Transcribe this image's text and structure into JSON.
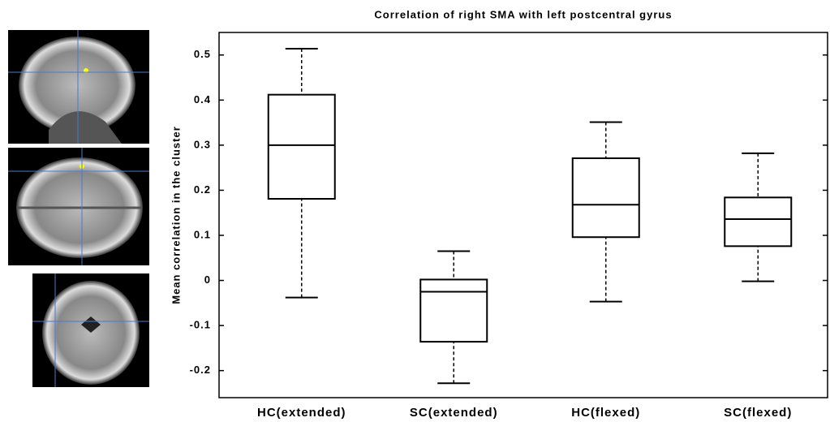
{
  "chart_data": {
    "type": "box",
    "title": "Correlation of right SMA with left postcentral gyrus",
    "y_label": "Mean correlation in the cluster",
    "categories": [
      "HC(extended)",
      "SC(extended)",
      "HC(flexed)",
      "SC(flexed)"
    ],
    "whishi": [
      0.514,
      0.065,
      0.351,
      0.282
    ],
    "q3": [
      0.412,
      0.002,
      0.271,
      0.184
    ],
    "median": [
      0.3,
      -0.025,
      0.168,
      0.136
    ],
    "q1": [
      0.181,
      -0.136,
      0.096,
      0.076
    ],
    "whislo": [
      -0.038,
      -0.228,
      -0.047,
      -0.002
    ],
    "color": "#000000",
    "ylim": [
      -0.26,
      0.55
    ],
    "yticks": [
      -0.2,
      -0.1,
      0,
      0.1,
      0.2,
      0.3,
      0.4,
      0.5
    ]
  }
}
